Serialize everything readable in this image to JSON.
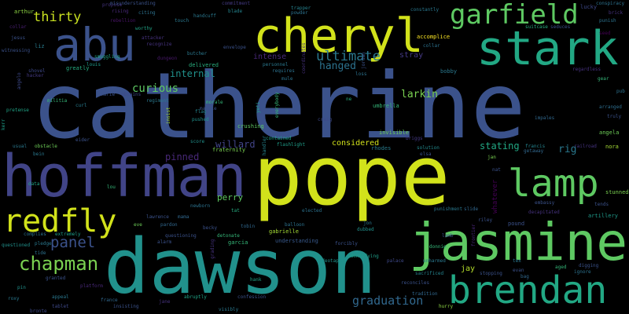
{
  "words": [
    {
      "text": "catherine",
      "color": "#3b528b"
    },
    {
      "text": "pope",
      "color": "#d2e21b"
    },
    {
      "text": "dawson",
      "color": "#21918c"
    },
    {
      "text": "hoffman",
      "color": "#414487"
    },
    {
      "text": "jasmine",
      "color": "#5ec962"
    },
    {
      "text": "cheryl",
      "color": "#d2e21b"
    },
    {
      "text": "stark",
      "color": "#22a884"
    },
    {
      "text": "abu",
      "color": "#3b528b"
    },
    {
      "text": "brendan",
      "color": "#22a884"
    },
    {
      "text": "garfield",
      "color": "#5ec962"
    },
    {
      "text": "redfly",
      "color": "#d2e21b"
    },
    {
      "text": "lamp",
      "color": "#5ec962"
    },
    {
      "text": "chapman",
      "color": "#7ad151"
    },
    {
      "text": "panel",
      "color": "#3b528b"
    },
    {
      "text": "thirty",
      "color": "#c8e020"
    },
    {
      "text": "ultimate",
      "color": "#2a788e"
    },
    {
      "text": "hanged",
      "color": "#2c728e"
    },
    {
      "text": "graduation",
      "color": "#31688e"
    },
    {
      "text": "larkin",
      "color": "#7ad151"
    },
    {
      "text": "internal",
      "color": "#21918c"
    },
    {
      "text": "curious",
      "color": "#5ec962"
    },
    {
      "text": "willard",
      "color": "#414487"
    },
    {
      "text": "pinned",
      "color": "#482878"
    },
    {
      "text": "stating",
      "color": "#22a884"
    },
    {
      "text": "rig",
      "color": "#2a788e"
    },
    {
      "text": "perry",
      "color": "#5ec962"
    },
    {
      "text": "considered",
      "color": "#d2e21b"
    },
    {
      "text": "jay",
      "color": "#b5de2b"
    },
    {
      "text": "intense",
      "color": "#482878"
    },
    {
      "text": "understanding",
      "color": "#38598c"
    },
    {
      "text": "invisible",
      "color": "#6ece58"
    },
    {
      "text": "whatever",
      "color": "#440154"
    },
    {
      "text": "stray",
      "color": "#443983"
    },
    {
      "text": "lucky",
      "color": "#3e4989"
    },
    {
      "text": "conspiracy",
      "color": "#2c728e"
    },
    {
      "text": "arthur",
      "color": "#8fd744"
    },
    {
      "text": "collar",
      "color": "#481f70"
    },
    {
      "text": "jesus",
      "color": "#3b528b"
    },
    {
      "text": "witnessing",
      "color": "#3b528b"
    },
    {
      "text": "liz",
      "color": "#287c8e"
    },
    {
      "text": "angela",
      "color": "#6ece58"
    },
    {
      "text": "nora",
      "color": "#a5db36"
    },
    {
      "text": "stunned",
      "color": "#7ad151"
    },
    {
      "text": "tends",
      "color": "#3b528b"
    },
    {
      "text": "artillery",
      "color": "#1f9a8a"
    },
    {
      "text": "regardless",
      "color": "#46327e"
    },
    {
      "text": "gear",
      "color": "#35b779"
    },
    {
      "text": "truly",
      "color": "#3b528b"
    },
    {
      "text": "arranged",
      "color": "#2e6e8e"
    },
    {
      "text": "seed",
      "color": "#440154"
    },
    {
      "text": "brick",
      "color": "#46327e"
    },
    {
      "text": "punish",
      "color": "#2c728e"
    },
    {
      "text": "seduces",
      "color": "#3b528b"
    },
    {
      "text": "suitcase",
      "color": "#29af7f"
    },
    {
      "text": "constantly",
      "color": "#2a788e"
    },
    {
      "text": "accomplice",
      "color": "#fde725"
    },
    {
      "text": "collar",
      "color": "#2c728e"
    },
    {
      "text": "bobby",
      "color": "#2a788e"
    },
    {
      "text": "morale",
      "color": "#35b779"
    },
    {
      "text": "regiment",
      "color": "#2a788e"
    },
    {
      "text": "margie",
      "color": "#3b528b"
    },
    {
      "text": "butcher",
      "color": "#2a788e"
    },
    {
      "text": "envelope",
      "color": "#3b528b"
    },
    {
      "text": "delivered",
      "color": "#29af7f"
    },
    {
      "text": "dungeon",
      "color": "#48186a"
    },
    {
      "text": "obtains",
      "color": "#3e4989"
    },
    {
      "text": "louis",
      "color": "#1f9a8a"
    },
    {
      "text": "greatly",
      "color": "#27ad81"
    },
    {
      "text": "shovel",
      "color": "#3e4989"
    },
    {
      "text": "smuggling",
      "color": "#20a486"
    },
    {
      "text": "rebellion",
      "color": "#471365"
    },
    {
      "text": "propose",
      "color": "#463480"
    },
    {
      "text": "misunderstanding",
      "color": "#3b528b"
    },
    {
      "text": "rising",
      "color": "#482878"
    },
    {
      "text": "citing",
      "color": "#2c728e"
    },
    {
      "text": "worthy",
      "color": "#20a486"
    },
    {
      "text": "attacker",
      "color": "#46327e"
    },
    {
      "text": "recognize",
      "color": "#46337f"
    },
    {
      "text": "handcuff",
      "color": "#2a788e"
    },
    {
      "text": "touch",
      "color": "#2a788e"
    },
    {
      "text": "blade",
      "color": "#25848e"
    },
    {
      "text": "commitment",
      "color": "#443a83"
    },
    {
      "text": "trapper",
      "color": "#26828e"
    },
    {
      "text": "powder",
      "color": "#2c728e"
    },
    {
      "text": "coordinates",
      "color": "#46327e"
    },
    {
      "text": "personnel",
      "color": "#2a788e"
    },
    {
      "text": "requires",
      "color": "#2c728e"
    },
    {
      "text": "jordan",
      "color": "#3b528b"
    },
    {
      "text": "mule",
      "color": "#2c728e"
    },
    {
      "text": "loss",
      "color": "#2c728e"
    },
    {
      "text": "ne",
      "color": "#29af7f"
    },
    {
      "text": "craig",
      "color": "#3e4989"
    },
    {
      "text": "crushing",
      "color": "#5ec962"
    },
    {
      "text": "everybody",
      "color": "#35b779"
    },
    {
      "text": "yeti",
      "color": "#1f9e89"
    },
    {
      "text": "handler",
      "color": "#25848e"
    },
    {
      "text": "contained",
      "color": "#20a486"
    },
    {
      "text": "flashlight",
      "color": "#1f9e89"
    },
    {
      "text": "umbrella",
      "color": "#35b779"
    },
    {
      "text": "briggs",
      "color": "#443983"
    },
    {
      "text": "rhodes",
      "color": "#287c8e"
    },
    {
      "text": "solution",
      "color": "#238a8d"
    },
    {
      "text": "elsa",
      "color": "#3b528b"
    },
    {
      "text": "francis",
      "color": "#25848e"
    },
    {
      "text": "getaway",
      "color": "#31688e"
    },
    {
      "text": "railroad",
      "color": "#46337f"
    },
    {
      "text": "impales",
      "color": "#31688e"
    },
    {
      "text": "pub",
      "color": "#2c728e"
    },
    {
      "text": "jan",
      "color": "#7ad151"
    },
    {
      "text": "nat",
      "color": "#3b528b"
    },
    {
      "text": "embassy",
      "color": "#3b528b"
    },
    {
      "text": "decapitated",
      "color": "#46327e"
    },
    {
      "text": "punishment",
      "color": "#2a788e"
    },
    {
      "text": "riley",
      "color": "#3b528b"
    },
    {
      "text": "slide",
      "color": "#31688e"
    },
    {
      "text": "pound",
      "color": "#3b528b"
    },
    {
      "text": "lamb",
      "color": "#3b528b"
    },
    {
      "text": "donnie",
      "color": "#35b779"
    },
    {
      "text": "frontier",
      "color": "#482475"
    },
    {
      "text": "tex",
      "color": "#2a788e"
    },
    {
      "text": "aged",
      "color": "#35b779"
    },
    {
      "text": "digging",
      "color": "#3b528b"
    },
    {
      "text": "ignore",
      "color": "#2c728e"
    },
    {
      "text": "evan",
      "color": "#3b528b"
    },
    {
      "text": "bag",
      "color": "#31688e"
    },
    {
      "text": "stopping",
      "color": "#3b528b"
    },
    {
      "text": "sacrificed",
      "color": "#25848e"
    },
    {
      "text": "unharmed",
      "color": "#2a788e"
    },
    {
      "text": "reconciles",
      "color": "#3b528b"
    },
    {
      "text": "tradition",
      "color": "#31688e"
    },
    {
      "text": "hurry",
      "color": "#8fd744"
    },
    {
      "text": "palace",
      "color": "#3e4989"
    },
    {
      "text": "identifying",
      "color": "#1f9e89"
    },
    {
      "text": "videotape",
      "color": "#21918c"
    },
    {
      "text": "forcibly",
      "color": "#3b528b"
    },
    {
      "text": "dubbed",
      "color": "#21918c"
    },
    {
      "text": "elected",
      "color": "#2c728e"
    },
    {
      "text": "jon",
      "color": "#2a788e"
    },
    {
      "text": "balloon",
      "color": "#2c728e"
    },
    {
      "text": "gabrielle",
      "color": "#a5db36"
    },
    {
      "text": "tobin",
      "color": "#31688e"
    },
    {
      "text": "becky",
      "color": "#3b528b"
    },
    {
      "text": "tat",
      "color": "#27ad81"
    },
    {
      "text": "detonate",
      "color": "#35b779"
    },
    {
      "text": "garcia",
      "color": "#35b779"
    },
    {
      "text": "hank",
      "color": "#20a486"
    },
    {
      "text": "confession",
      "color": "#3b528b"
    },
    {
      "text": "visibly",
      "color": "#2a788e"
    },
    {
      "text": "abruptly",
      "color": "#20a486"
    },
    {
      "text": "grading",
      "color": "#46327e"
    },
    {
      "text": "lawrence",
      "color": "#3b528b"
    },
    {
      "text": "mama",
      "color": "#31688e"
    },
    {
      "text": "pardon",
      "color": "#31688e"
    },
    {
      "text": "newborn",
      "color": "#2c728e"
    },
    {
      "text": "questioning",
      "color": "#3b528b"
    },
    {
      "text": "alarm",
      "color": "#3b528b"
    },
    {
      "text": "lou",
      "color": "#35b779"
    },
    {
      "text": "eve",
      "color": "#6ece58"
    },
    {
      "text": "complies",
      "color": "#2c728e"
    },
    {
      "text": "extremely",
      "color": "#1f9e89"
    },
    {
      "text": "pledge",
      "color": "#2a788e"
    },
    {
      "text": "tide",
      "color": "#2c728e"
    },
    {
      "text": "questioned",
      "color": "#21918c"
    },
    {
      "text": "granted",
      "color": "#3b528b"
    },
    {
      "text": "pin",
      "color": "#21918c"
    },
    {
      "text": "roxy",
      "color": "#2a788e"
    },
    {
      "text": "appeal",
      "color": "#2a788e"
    },
    {
      "text": "tablet",
      "color": "#3e4989"
    },
    {
      "text": "platform",
      "color": "#482878"
    },
    {
      "text": "france",
      "color": "#31688e"
    },
    {
      "text": "insisting",
      "color": "#3b528b"
    },
    {
      "text": "jane",
      "color": "#46327e"
    },
    {
      "text": "data",
      "color": "#20a486"
    },
    {
      "text": "bein",
      "color": "#2a788e"
    },
    {
      "text": "usual",
      "color": "#2a788e"
    },
    {
      "text": "obstacle",
      "color": "#6ece58"
    },
    {
      "text": "pretense",
      "color": "#20a486"
    },
    {
      "text": "kerr",
      "color": "#1f9e89"
    },
    {
      "text": "militia",
      "color": "#35b779"
    },
    {
      "text": "hacker",
      "color": "#443983"
    },
    {
      "text": "angelo",
      "color": "#3e4989"
    },
    {
      "text": "eider",
      "color": "#3b528b"
    },
    {
      "text": "insist",
      "color": "#a5db36"
    },
    {
      "text": "flag",
      "color": "#25848e"
    },
    {
      "text": "pushed",
      "color": "#21918c"
    },
    {
      "text": "curl",
      "color": "#287c8e"
    },
    {
      "text": "marie",
      "color": "#3b528b"
    },
    {
      "text": "score",
      "color": "#21918c"
    },
    {
      "text": "fraternity",
      "color": "#7ad151"
    },
    {
      "text": "bronte",
      "color": "#3e4989"
    }
  ]
}
